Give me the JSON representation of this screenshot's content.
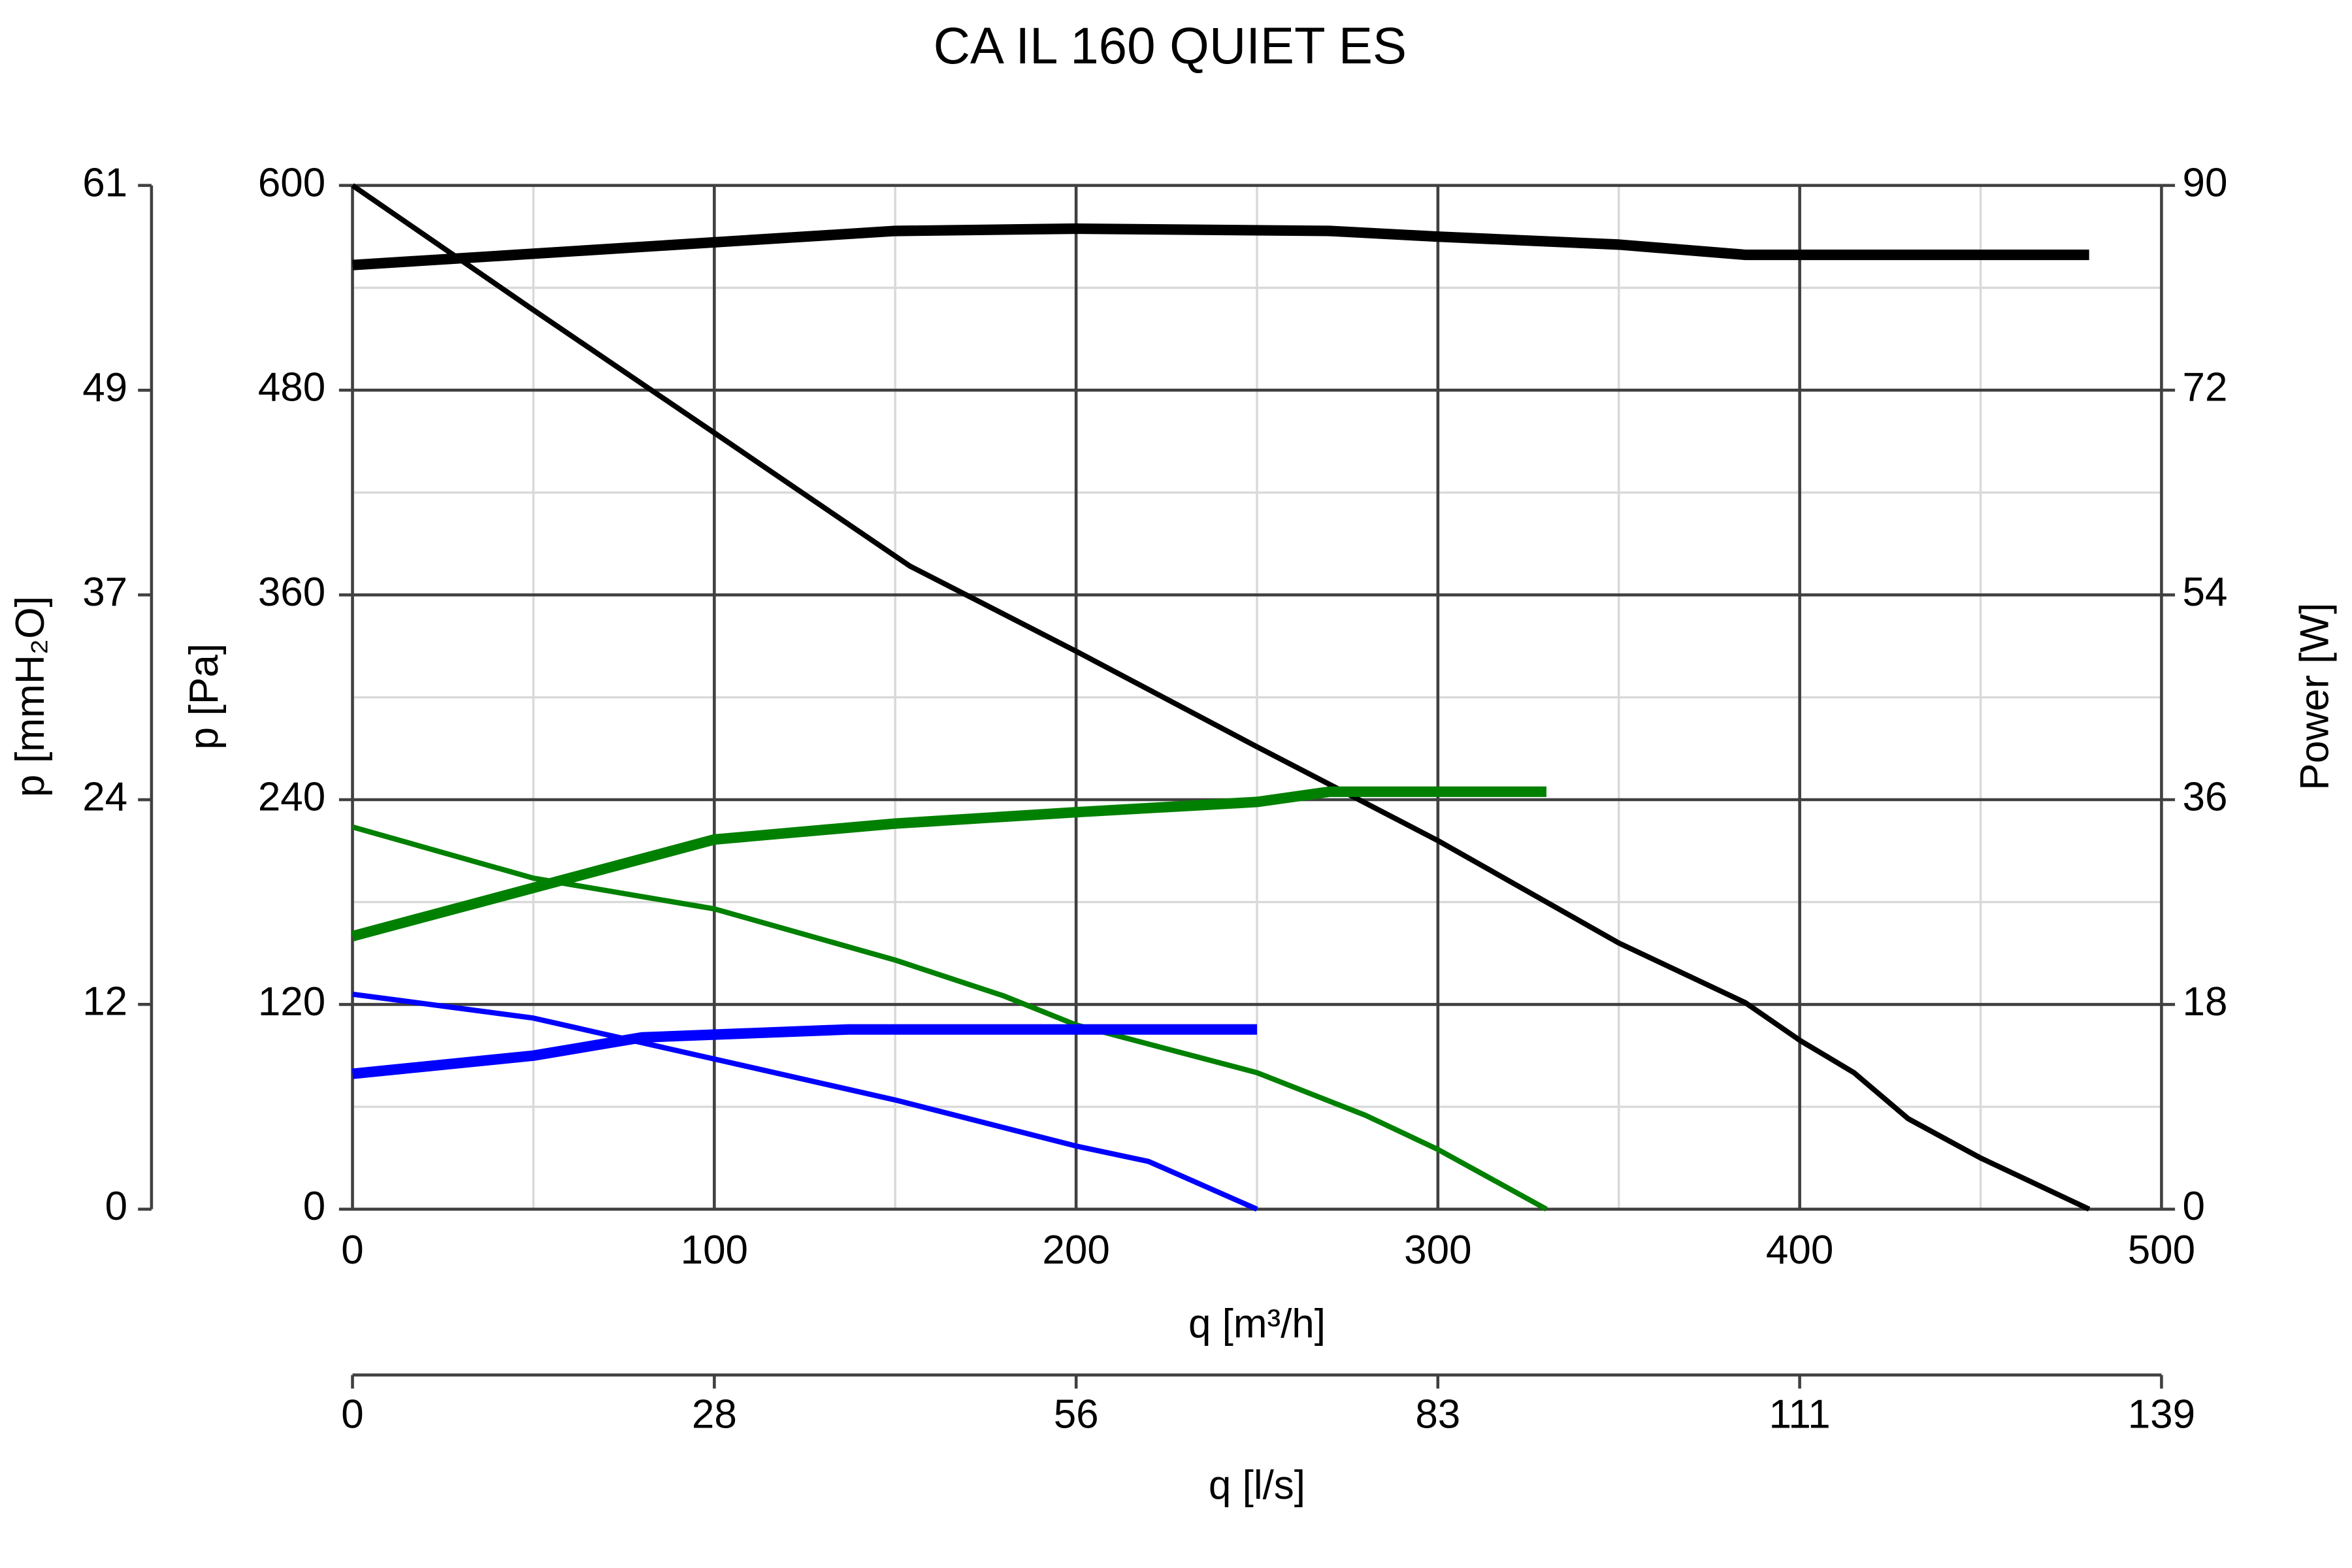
{
  "chart_data": {
    "type": "line",
    "title": "CA IL 160 QUIET ES",
    "x_label": "q [m³/h]",
    "xlim": [
      0,
      500
    ],
    "xticks": [
      0,
      100,
      200,
      300,
      400,
      500
    ],
    "x2_label": "q [l/s]",
    "x2lim": [
      0,
      138.89
    ],
    "x2ticks": [
      0,
      {
        "value": 27.78,
        "label": "28"
      },
      {
        "value": 55.56,
        "label": "56"
      },
      {
        "value": 83.33,
        "label": "83"
      },
      {
        "value": 111.11,
        "label": "111"
      },
      {
        "value": 138.89,
        "label": "139"
      }
    ],
    "y_label": "p [Pa]",
    "ylim": [
      0,
      600
    ],
    "yticks": [
      0,
      120,
      240,
      360,
      480,
      600
    ],
    "y_alt_label": "p [mmH₂O]",
    "y_alt_lim": [
      0,
      61.18
    ],
    "y_alt_ticks": [
      0,
      {
        "value": 12.24,
        "label": "12"
      },
      {
        "value": 24.47,
        "label": "24"
      },
      {
        "value": 36.71,
        "label": "37"
      },
      {
        "value": 48.94,
        "label": "49"
      },
      {
        "value": 61.18,
        "label": "61"
      }
    ],
    "y2_label": "Power [W]",
    "y2lim": [
      0,
      90
    ],
    "y2ticks": [
      0,
      18,
      36,
      54,
      72,
      90
    ],
    "grid": true,
    "series": [
      {
        "color": "#000000",
        "x": [
          0,
          50,
          100,
          154,
          200,
          250,
          300,
          350,
          385,
          400,
          415,
          430,
          450,
          480
        ],
        "values": [
          600,
          527,
          455,
          377,
          327,
          271,
          216,
          156,
          121,
          99,
          80,
          53,
          30,
          0
        ]
      },
      {
        "color": "#000000",
        "axis": "y2",
        "x": [
          0,
          150,
          200,
          270,
          300,
          350,
          385,
          480
        ],
        "values": [
          83.0,
          86.0,
          86.2,
          86.0,
          85.5,
          84.8,
          83.9,
          83.9
        ]
      },
      {
        "color": "#008000",
        "x": [
          0,
          50,
          100,
          150,
          180,
          200,
          250,
          280,
          300,
          330
        ],
        "values": [
          224,
          194,
          176,
          146,
          125,
          108,
          80,
          55,
          35,
          0
        ]
      },
      {
        "color": "#008000",
        "axis": "y2",
        "x": [
          0,
          100,
          150,
          200,
          250,
          270,
          330
        ],
        "values": [
          24.0,
          32.5,
          33.9,
          34.9,
          35.8,
          36.7,
          36.7
        ]
      },
      {
        "color": "#0000ff",
        "x": [
          0,
          50,
          100,
          150,
          200,
          220,
          250
        ],
        "values": [
          126,
          112,
          88,
          64,
          37,
          28,
          0
        ]
      },
      {
        "color": "#0000ff",
        "axis": "y2",
        "x": [
          0,
          50,
          80,
          137,
          250
        ],
        "values": [
          11.9,
          13.5,
          15.1,
          15.8,
          15.8
        ]
      }
    ]
  }
}
